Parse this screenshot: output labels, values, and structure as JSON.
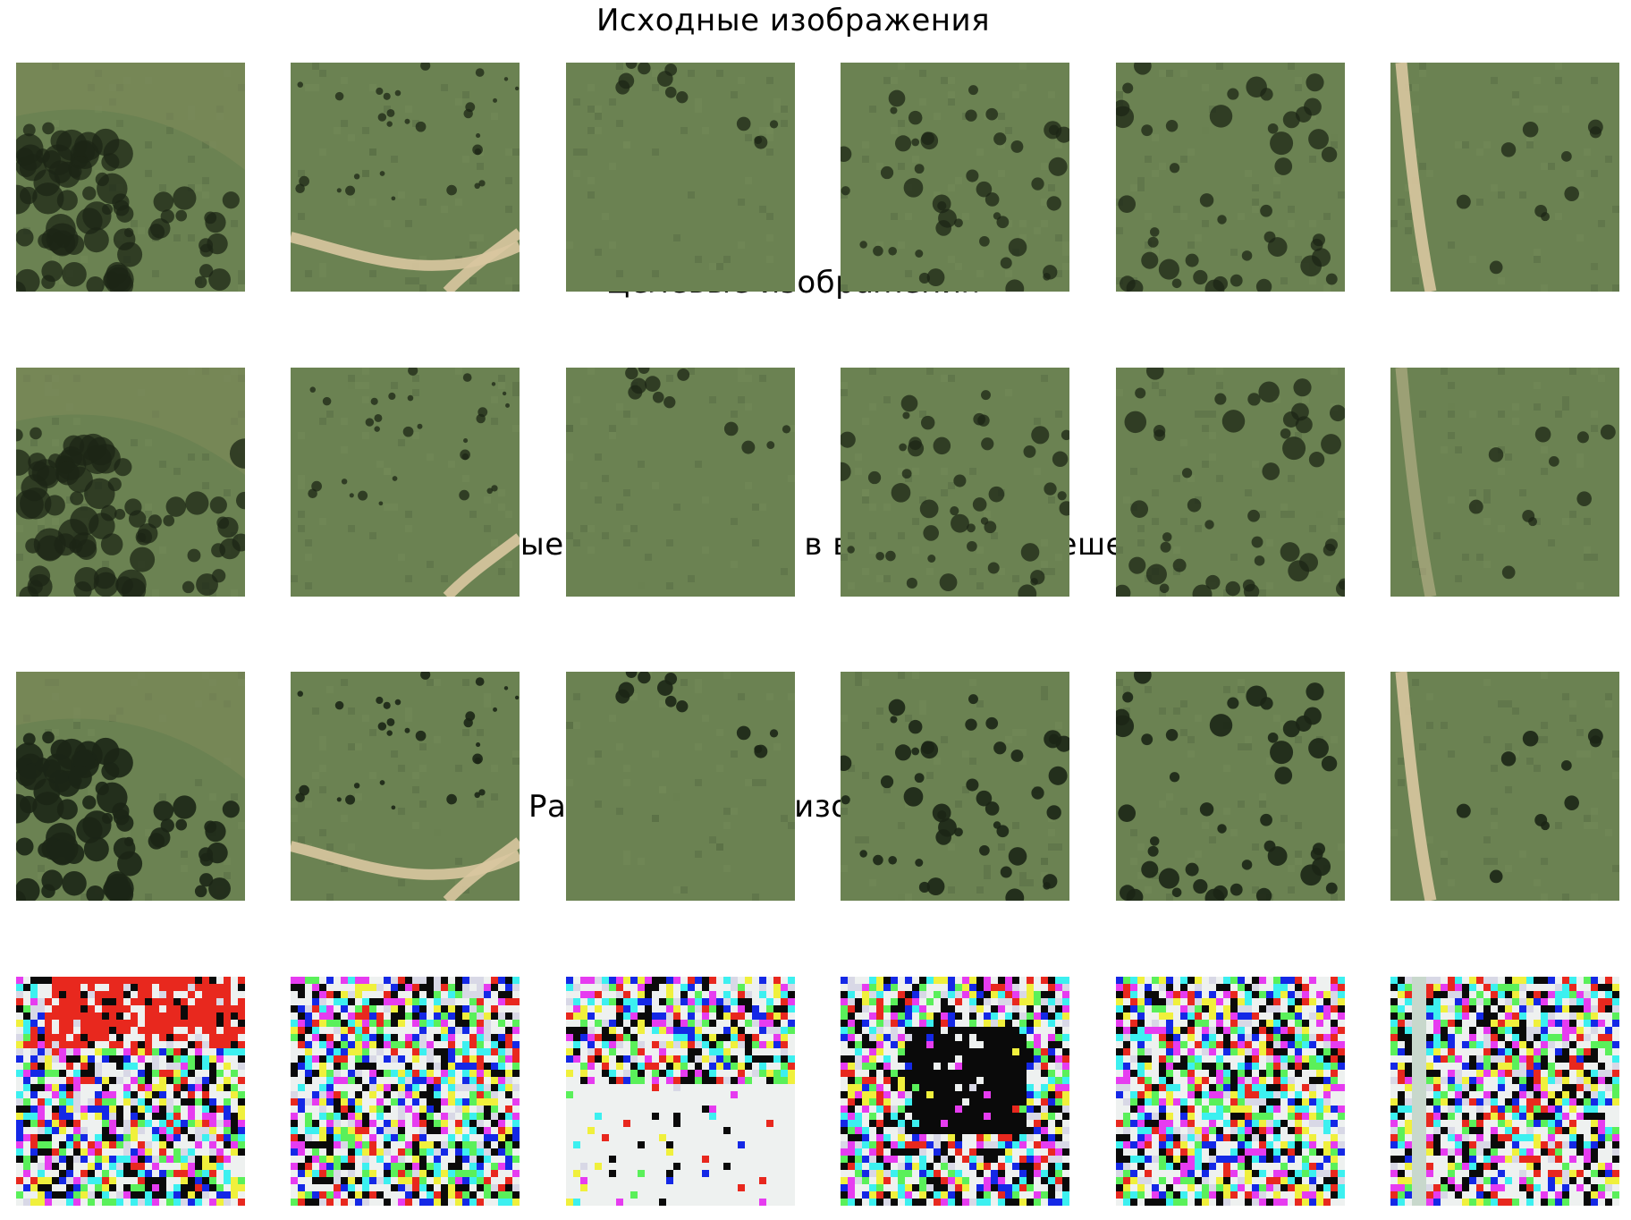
{
  "rows": [
    {
      "title": "Исходные изображения",
      "kind": "original"
    },
    {
      "title": "Целевые изображения",
      "kind": "target"
    },
    {
      "title": "Исходные изображения в высоком разрешении",
      "kind": "highres"
    },
    {
      "title": "Разница между изображениями",
      "kind": "difference"
    }
  ],
  "tiles": [
    {
      "name": "tile-1",
      "content": "grass with dense dark tree cluster at lower-left"
    },
    {
      "name": "tile-2",
      "content": "grass field with curving dirt road at bottom"
    },
    {
      "name": "tile-3",
      "content": "grass field with faint track"
    },
    {
      "name": "tile-4",
      "content": "grass with scattered dark shrubs"
    },
    {
      "name": "tile-5",
      "content": "grass with dark bush patches"
    },
    {
      "name": "tile-6",
      "content": "grass with vertical dirt path on left"
    }
  ],
  "colors": {
    "grass": "#6b8252",
    "grass_dark": "#5a7046",
    "tree": "#1c2616",
    "road": "#d9c6a0",
    "diff_white": "#eef1f0",
    "diff_black": "#0a0a0a",
    "diff_red": "#e8281e",
    "diff_magenta": "#e63cf0",
    "diff_blue": "#1428e6",
    "diff_cyan": "#3cf0f0",
    "diff_yellow": "#f0f03c",
    "diff_green": "#5af05a"
  }
}
